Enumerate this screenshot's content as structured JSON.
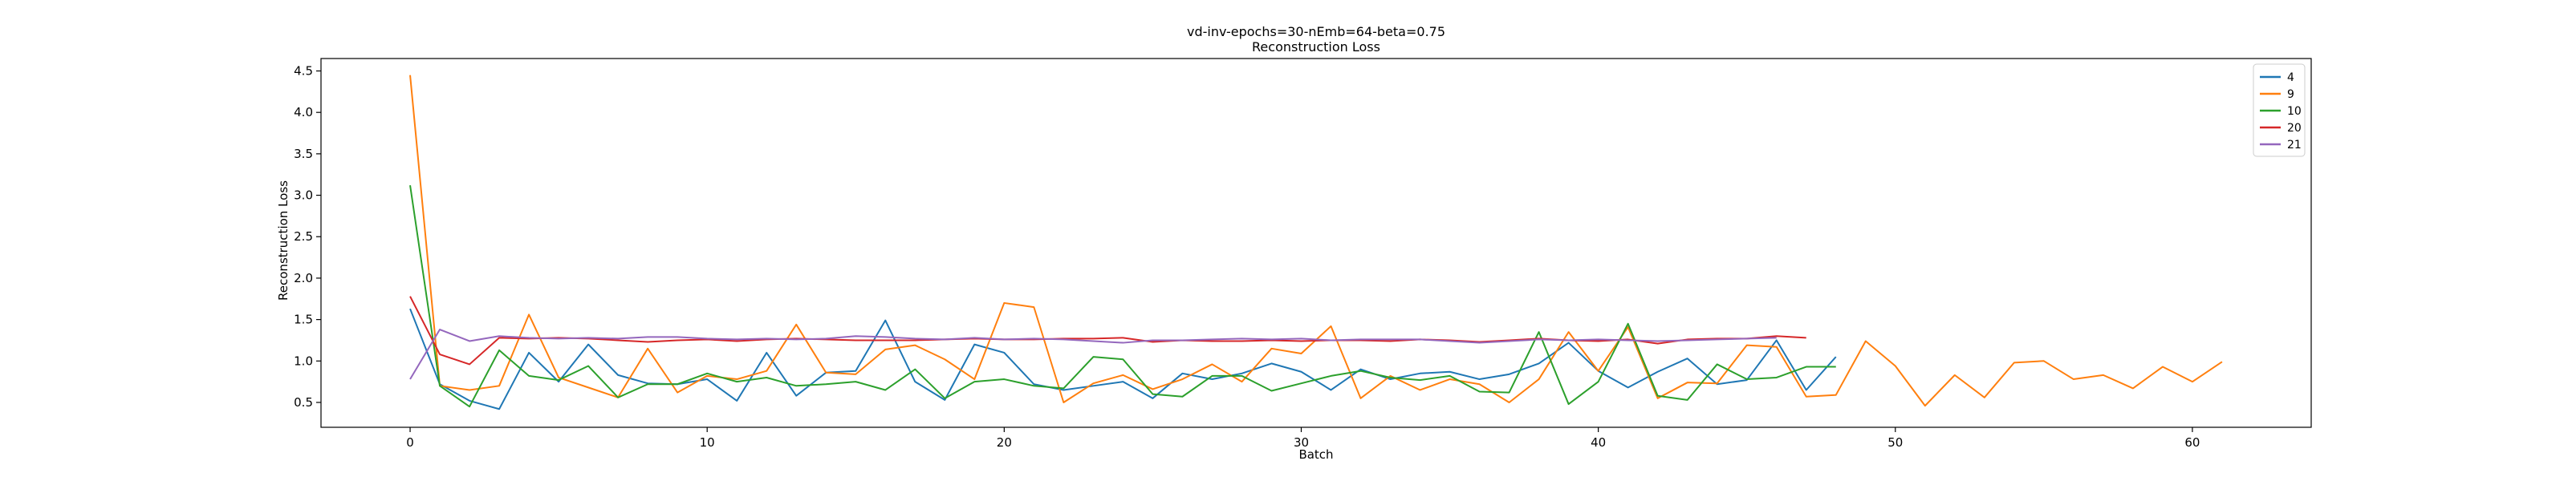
{
  "chart_data": {
    "type": "line",
    "title": "vd-inv-epochs=30-nEmb=64-beta=0.75",
    "subtitle": "Reconstruction Loss",
    "xlabel": "Batch",
    "ylabel": "Reconstruction Loss",
    "xlim": [
      -3,
      64
    ],
    "ylim": [
      0.2,
      4.65
    ],
    "xticks": [
      0,
      10,
      20,
      30,
      40,
      50,
      60
    ],
    "xtick_labels": [
      "0",
      "10",
      "20",
      "30",
      "40",
      "50",
      "60"
    ],
    "yticks": [
      0.5,
      1.0,
      1.5,
      2.0,
      2.5,
      3.0,
      3.5,
      4.0,
      4.5
    ],
    "ytick_labels": [
      "0.5",
      "1.0",
      "1.5",
      "2.0",
      "2.5",
      "3.0",
      "3.5",
      "4.0",
      "4.5"
    ],
    "grid": false,
    "legend": "top-right",
    "series": [
      {
        "name": "4",
        "color": "#1f77b4",
        "values": [
          1.63,
          0.72,
          0.52,
          0.42,
          1.1,
          0.75,
          1.2,
          0.83,
          0.73,
          0.72,
          0.78,
          0.52,
          1.1,
          0.58,
          0.86,
          0.88,
          1.49,
          0.75,
          0.53,
          1.2,
          1.1,
          0.72,
          0.65,
          0.7,
          0.75,
          0.55,
          0.85,
          0.78,
          0.85,
          0.97,
          0.87,
          0.65,
          0.9,
          0.78,
          0.85,
          0.87,
          0.78,
          0.84,
          0.97,
          1.22,
          0.88,
          0.68,
          0.87,
          1.03,
          0.72,
          0.77,
          1.25,
          0.65,
          1.05
        ]
      },
      {
        "name": "9",
        "color": "#ff7f0e",
        "values": [
          4.45,
          0.7,
          0.65,
          0.7,
          1.56,
          0.8,
          0.68,
          0.56,
          1.15,
          0.62,
          0.82,
          0.78,
          0.88,
          1.44,
          0.86,
          0.84,
          1.14,
          1.19,
          1.02,
          0.78,
          1.7,
          1.65,
          0.5,
          0.73,
          0.83,
          0.66,
          0.78,
          0.96,
          0.75,
          1.15,
          1.09,
          1.42,
          0.55,
          0.82,
          0.65,
          0.78,
          0.72,
          0.5,
          0.78,
          1.35,
          0.88,
          1.41,
          0.55,
          0.74,
          0.73,
          1.19,
          1.17,
          0.57,
          0.59,
          1.24,
          0.94,
          0.46,
          0.83,
          0.56,
          0.98,
          1.0,
          0.78,
          0.83,
          0.67,
          0.93,
          0.75,
          0.99
        ]
      },
      {
        "name": "10",
        "color": "#2ca02c",
        "values": [
          3.12,
          0.7,
          0.45,
          1.13,
          0.82,
          0.77,
          0.94,
          0.56,
          0.72,
          0.72,
          0.85,
          0.75,
          0.8,
          0.7,
          0.72,
          0.75,
          0.65,
          0.9,
          0.55,
          0.75,
          0.78,
          0.7,
          0.67,
          1.05,
          1.02,
          0.6,
          0.57,
          0.82,
          0.82,
          0.64,
          0.73,
          0.82,
          0.88,
          0.8,
          0.77,
          0.82,
          0.63,
          0.62,
          1.35,
          0.48,
          0.75,
          1.45,
          0.58,
          0.53,
          0.96,
          0.78,
          0.8,
          0.93,
          0.93
        ]
      },
      {
        "name": "20",
        "color": "#d62728",
        "values": [
          1.78,
          1.08,
          0.96,
          1.28,
          1.27,
          1.28,
          1.27,
          1.25,
          1.23,
          1.25,
          1.26,
          1.24,
          1.26,
          1.27,
          1.26,
          1.25,
          1.25,
          1.25,
          1.26,
          1.27,
          1.26,
          1.26,
          1.27,
          1.27,
          1.28,
          1.23,
          1.25,
          1.24,
          1.24,
          1.25,
          1.24,
          1.25,
          1.25,
          1.24,
          1.26,
          1.25,
          1.23,
          1.25,
          1.27,
          1.25,
          1.24,
          1.26,
          1.21,
          1.26,
          1.27,
          1.27,
          1.3,
          1.28
        ]
      },
      {
        "name": "21",
        "color": "#9467bd",
        "values": [
          0.78,
          1.38,
          1.24,
          1.3,
          1.28,
          1.27,
          1.28,
          1.27,
          1.29,
          1.29,
          1.27,
          1.26,
          1.27,
          1.26,
          1.27,
          1.3,
          1.29,
          1.27,
          1.26,
          1.28,
          1.26,
          1.27,
          1.26,
          1.24,
          1.22,
          1.25,
          1.25,
          1.26,
          1.27,
          1.26,
          1.27,
          1.25,
          1.26,
          1.26,
          1.26,
          1.24,
          1.22,
          1.24,
          1.26,
          1.25,
          1.26,
          1.25,
          1.24,
          1.25,
          1.26,
          1.27,
          1.28
        ]
      }
    ]
  }
}
